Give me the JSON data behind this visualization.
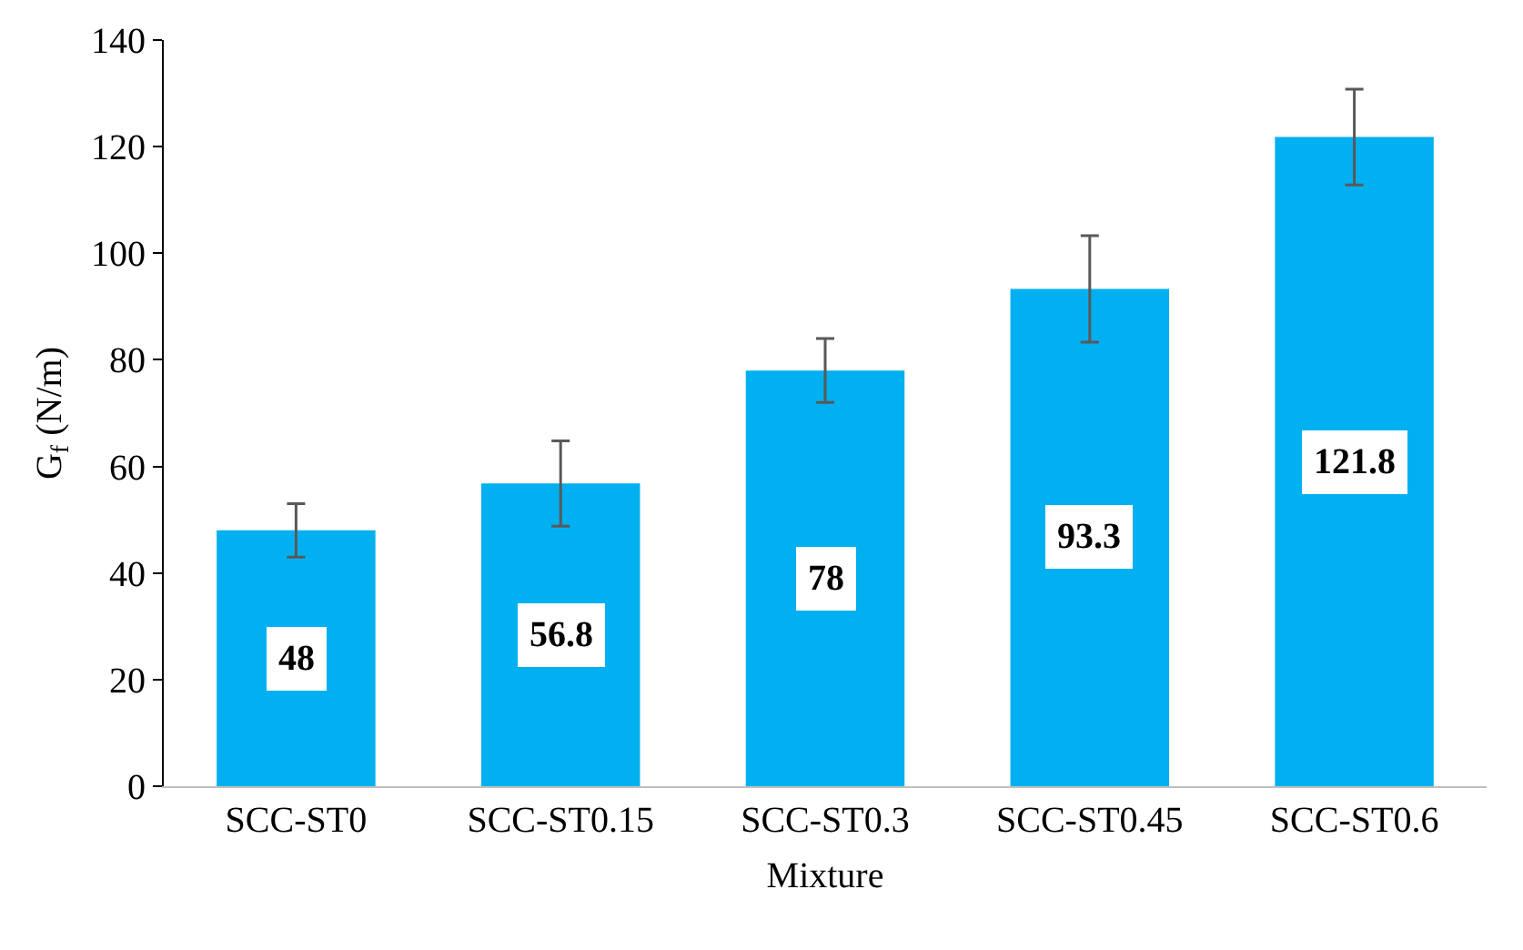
{
  "chart_data": {
    "type": "bar",
    "xlabel": "Mixture",
    "ylabel": "G$_{f}$ (N/m)",
    "categories": [
      "SCC-ST0",
      "SCC-ST0.15",
      "SCC-ST0.3",
      "SCC-ST0.45",
      "SCC-ST0.6"
    ],
    "values": [
      48,
      56.8,
      78,
      93.3,
      121.8
    ],
    "errors": [
      5,
      8,
      6,
      10,
      9
    ],
    "color": "#00b0f0",
    "ylim": [
      0,
      140
    ],
    "yticks": [
      0,
      20,
      40,
      60,
      80,
      100,
      120,
      140
    ],
    "data_labels": true,
    "grid": false
  }
}
